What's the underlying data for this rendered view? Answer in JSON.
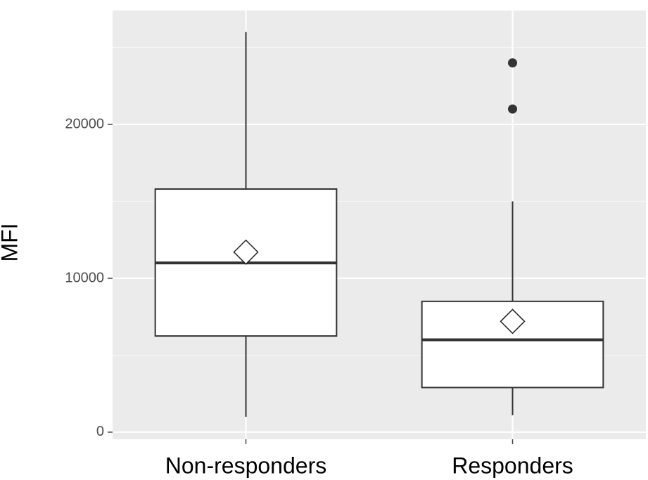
{
  "chart_data": {
    "type": "box",
    "y_label": "MFI",
    "categories": [
      "Non-responders",
      "Responders"
    ],
    "boxes": [
      {
        "min": 1000,
        "q1": 6250,
        "median": 11000,
        "q3": 15800,
        "max": 26000,
        "mean": 11700,
        "outliers": []
      },
      {
        "min": 1100,
        "q1": 2900,
        "median": 6000,
        "q3": 8500,
        "max": 15000,
        "mean": 7200,
        "outliers": [
          24000,
          21000
        ]
      }
    ],
    "ylim": [
      -460,
      27400
    ],
    "yticks": [
      0,
      10000,
      20000
    ],
    "minor_yticks": [
      5000,
      15000,
      25000
    ],
    "grid": true
  }
}
